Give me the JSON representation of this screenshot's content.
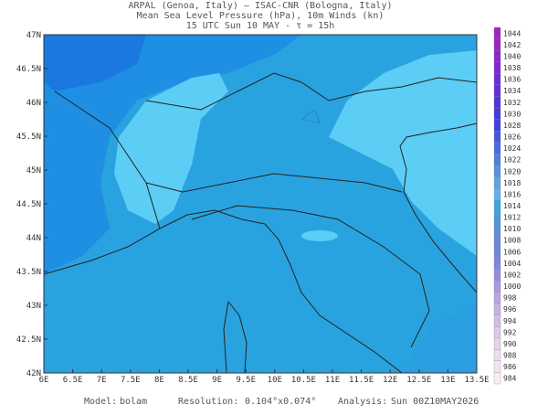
{
  "header": {
    "line1": "ARPAL (Genoa, Italy)  —  ISAC-CNR (Bologna, Italy)",
    "line2": "Mean Sea Level Pressure (hPa), 10m Winds (kn)",
    "line3": "15 UTC Sun 10 MAY  -  τ = 15h"
  },
  "lat_ticks": [
    "47N",
    "46.5N",
    "46N",
    "45.5N",
    "45N",
    "44.5N",
    "44N",
    "43.5N",
    "43N",
    "42.5N",
    "42N"
  ],
  "lon_ticks": [
    "6E",
    "6.5E",
    "7E",
    "7.5E",
    "8E",
    "8.5E",
    "9E",
    "9.5E",
    "10E",
    "10.5E",
    "11E",
    "11.5E",
    "12E",
    "12.5E",
    "13E",
    "13.5E"
  ],
  "colorbar": [
    1044,
    1042,
    1040,
    1038,
    1036,
    1034,
    1032,
    1030,
    1028,
    1026,
    1024,
    1022,
    1020,
    1018,
    1016,
    1014,
    1012,
    1010,
    1008,
    1006,
    1004,
    1002,
    1000,
    998,
    996,
    994,
    992,
    990,
    988,
    986,
    984
  ],
  "footer": {
    "model_label": "Model:",
    "model": "bolam",
    "resolution_label": "Resolution:",
    "resolution": "0.104°x0.074°",
    "analysis_label": "Analysis:",
    "analysis": "Sun 00Z10MAY2026"
  }
}
